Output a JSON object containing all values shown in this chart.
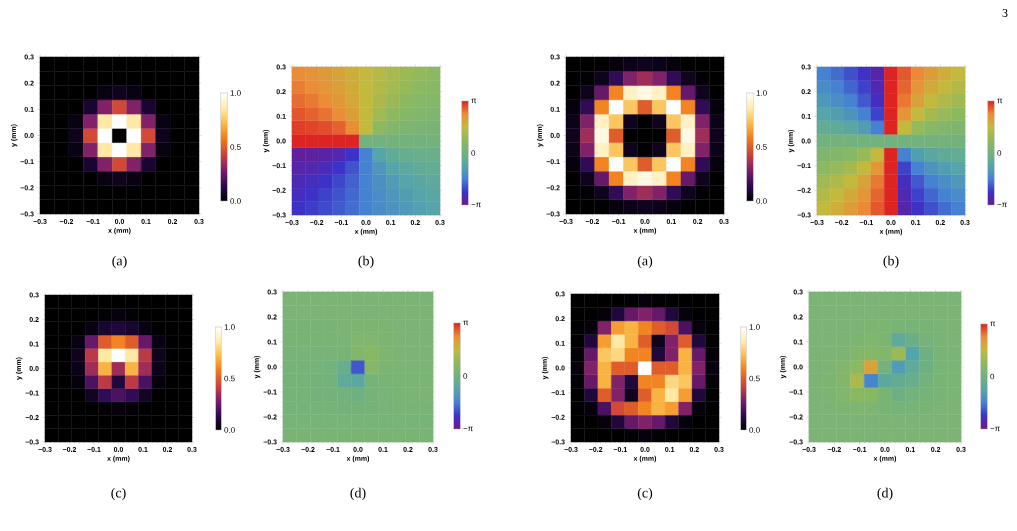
{
  "chart_data": [
    {
      "type": "heatmap",
      "title": "(a)",
      "xlabel": "x (mm)",
      "ylabel": "y (mm)",
      "x": [
        -0.2727,
        -0.2182,
        -0.1636,
        -0.1091,
        -0.0545,
        0,
        0.0545,
        0.1091,
        0.1636,
        0.2182,
        0.2727
      ],
      "y": [
        0.2727,
        0.2182,
        0.1636,
        0.1091,
        0.0545,
        0,
        -0.0545,
        -0.1091,
        -0.1636,
        -0.2182,
        -0.2727
      ],
      "xlim": [
        -0.3,
        0.3
      ],
      "ylim": [
        -0.3,
        0.3
      ],
      "xticks": [
        {
          "value": -0.3,
          "label": "−0.3"
        },
        {
          "value": -0.2,
          "label": "−0.2"
        },
        {
          "value": -0.1,
          "label": "−0.1"
        },
        {
          "value": 0,
          "label": "0.0"
        },
        {
          "value": 0.1,
          "label": "0.1"
        },
        {
          "value": 0.2,
          "label": "0.2"
        },
        {
          "value": 0.3,
          "label": "0.3"
        }
      ],
      "yticks": [
        {
          "value": -0.3,
          "label": "−0.3"
        },
        {
          "value": -0.2,
          "label": "−0.2"
        },
        {
          "value": -0.1,
          "label": "−0.1"
        },
        {
          "value": 0,
          "label": "0.0"
        },
        {
          "value": 0.1,
          "label": "0.1"
        },
        {
          "value": 0.2,
          "label": "0.2"
        },
        {
          "value": 0.3,
          "label": "0.3"
        }
      ],
      "clim": [
        0,
        1
      ],
      "cticks": [
        {
          "value": 0,
          "label": "0.0"
        },
        {
          "value": 0.5,
          "label": "0.5"
        },
        {
          "value": 1,
          "label": "1.0"
        }
      ],
      "cells": [
        [
          0,
          0,
          0,
          0,
          0,
          0,
          0,
          0,
          0,
          0,
          0
        ],
        [
          0,
          0,
          0,
          0,
          0,
          0,
          0,
          0,
          0,
          0,
          0
        ],
        [
          0,
          0,
          0,
          0,
          0.03,
          0.05,
          0.03,
          0,
          0,
          0,
          0
        ],
        [
          0,
          0,
          0,
          0.08,
          0.3,
          0.45,
          0.3,
          0.08,
          0,
          0,
          0
        ],
        [
          0,
          0,
          0.03,
          0.3,
          0.85,
          1.0,
          0.85,
          0.3,
          0.03,
          0,
          0
        ],
        [
          0,
          0,
          0.05,
          0.45,
          1.0,
          0,
          1.0,
          0.45,
          0.05,
          0,
          0
        ],
        [
          0,
          0,
          0.03,
          0.3,
          0.85,
          1.0,
          0.85,
          0.3,
          0.03,
          0,
          0
        ],
        [
          0,
          0,
          0,
          0.08,
          0.3,
          0.45,
          0.3,
          0.08,
          0,
          0,
          0
        ],
        [
          0,
          0,
          0,
          0,
          0.03,
          0.05,
          0.03,
          0,
          0,
          0,
          0
        ],
        [
          0,
          0,
          0,
          0,
          0,
          0,
          0,
          0,
          0,
          0,
          0
        ],
        [
          0,
          0,
          0,
          0,
          0,
          0,
          0,
          0,
          0,
          0,
          0
        ]
      ]
    },
    {
      "type": "heatmap",
      "title": "(b)",
      "xlabel": "x (mm)",
      "ylabel": "y (mm)",
      "x": [
        -0.2727,
        -0.2182,
        -0.1636,
        -0.1091,
        -0.0545,
        0,
        0.0545,
        0.1091,
        0.1636,
        0.2182,
        0.2727
      ],
      "y": [
        0.2727,
        0.2182,
        0.1636,
        0.1091,
        0.0545,
        0,
        -0.0545,
        -0.1091,
        -0.1636,
        -0.2182,
        -0.2727
      ],
      "xlim": [
        -0.3,
        0.3
      ],
      "ylim": [
        -0.3,
        0.3
      ],
      "xticks": [
        {
          "value": -0.3,
          "label": "−0.3"
        },
        {
          "value": -0.2,
          "label": "−0.2"
        },
        {
          "value": -0.1,
          "label": "−0.1"
        },
        {
          "value": 0,
          "label": "0.0"
        },
        {
          "value": 0.1,
          "label": "0.1"
        },
        {
          "value": 0.2,
          "label": "0.2"
        },
        {
          "value": 0.3,
          "label": "0.3"
        }
      ],
      "yticks": [
        {
          "value": -0.3,
          "label": "−0.3"
        },
        {
          "value": -0.2,
          "label": "−0.2"
        },
        {
          "value": -0.1,
          "label": "−0.1"
        },
        {
          "value": 0,
          "label": "0.0"
        },
        {
          "value": 0.1,
          "label": "0.1"
        },
        {
          "value": 0.2,
          "label": "0.2"
        },
        {
          "value": 0.3,
          "label": "0.3"
        }
      ],
      "clim": [
        -3.14159,
        3.14159
      ],
      "cticks": [
        {
          "value": -3.14159,
          "label": "−π"
        },
        {
          "value": 0,
          "label": "0"
        },
        {
          "value": 3.14159,
          "label": "π"
        }
      ],
      "cells": [
        [
          2.36,
          2.25,
          2.11,
          1.95,
          1.77,
          1.57,
          1.37,
          1.19,
          1.03,
          0.9,
          0.79
        ],
        [
          2.47,
          2.36,
          2.21,
          2.03,
          1.82,
          1.57,
          1.33,
          1.11,
          0.93,
          0.79,
          0.67
        ],
        [
          2.6,
          2.5,
          2.36,
          2.16,
          1.89,
          1.57,
          1.25,
          0.98,
          0.79,
          0.64,
          0.54
        ],
        [
          2.76,
          2.68,
          2.55,
          2.36,
          2.03,
          1.57,
          1.11,
          0.79,
          0.59,
          0.46,
          0.38
        ],
        [
          2.94,
          2.9,
          2.82,
          2.68,
          2.36,
          1.57,
          0.79,
          0.46,
          0.32,
          0.24,
          0.2
        ],
        [
          3.14,
          3.14,
          3.14,
          3.14,
          3.14,
          0,
          0,
          0,
          0,
          0,
          0
        ],
        [
          -2.94,
          -2.9,
          -2.82,
          -2.68,
          -2.36,
          -1.57,
          -0.79,
          -0.46,
          -0.32,
          -0.24,
          -0.2
        ],
        [
          -2.76,
          -2.68,
          -2.55,
          -2.36,
          -2.03,
          -1.57,
          -1.11,
          -0.79,
          -0.59,
          -0.46,
          -0.38
        ],
        [
          -2.6,
          -2.5,
          -2.36,
          -2.16,
          -1.89,
          -1.57,
          -1.25,
          -0.98,
          -0.79,
          -0.64,
          -0.54
        ],
        [
          -2.47,
          -2.36,
          -2.21,
          -2.03,
          -1.82,
          -1.57,
          -1.33,
          -1.11,
          -0.93,
          -0.79,
          -0.67
        ],
        [
          -2.36,
          -2.25,
          -2.11,
          -1.95,
          -1.77,
          -1.57,
          -1.37,
          -1.19,
          -1.03,
          -0.9,
          -0.79
        ]
      ]
    },
    {
      "type": "heatmap",
      "title": "(a)",
      "xlabel": "x (mm)",
      "ylabel": "y (mm)",
      "x": [
        -0.2727,
        -0.2182,
        -0.1636,
        -0.1091,
        -0.0545,
        0,
        0.0545,
        0.1091,
        0.1636,
        0.2182,
        0.2727
      ],
      "y": [
        0.2727,
        0.2182,
        0.1636,
        0.1091,
        0.0545,
        0,
        -0.0545,
        -0.1091,
        -0.1636,
        -0.2182,
        -0.2727
      ],
      "xlim": [
        -0.3,
        0.3
      ],
      "ylim": [
        -0.3,
        0.3
      ],
      "xticks": [
        {
          "value": -0.3,
          "label": "−0.3"
        },
        {
          "value": -0.2,
          "label": "−0.2"
        },
        {
          "value": -0.1,
          "label": "−0.1"
        },
        {
          "value": 0,
          "label": "0.0"
        },
        {
          "value": 0.1,
          "label": "0.1"
        },
        {
          "value": 0.2,
          "label": "0.2"
        },
        {
          "value": 0.3,
          "label": "0.3"
        }
      ],
      "yticks": [
        {
          "value": -0.3,
          "label": "−0.3"
        },
        {
          "value": -0.2,
          "label": "−0.2"
        },
        {
          "value": -0.1,
          "label": "−0.1"
        },
        {
          "value": 0,
          "label": "0.0"
        },
        {
          "value": 0.1,
          "label": "0.1"
        },
        {
          "value": 0.2,
          "label": "0.2"
        },
        {
          "value": 0.3,
          "label": "0.3"
        }
      ],
      "clim": [
        0,
        1
      ],
      "cticks": [
        {
          "value": 0,
          "label": "0.0"
        },
        {
          "value": 0.5,
          "label": "0.5"
        },
        {
          "value": 1,
          "label": "1.0"
        }
      ],
      "cells": [
        [
          0,
          0,
          0,
          0.02,
          0.04,
          0.05,
          0.04,
          0.02,
          0,
          0,
          0
        ],
        [
          0,
          0.01,
          0.05,
          0.15,
          0.3,
          0.35,
          0.3,
          0.15,
          0.05,
          0.01,
          0
        ],
        [
          0,
          0.05,
          0.25,
          0.6,
          0.9,
          0.95,
          0.9,
          0.6,
          0.25,
          0.05,
          0
        ],
        [
          0.02,
          0.15,
          0.6,
          1.0,
          0.75,
          0.5,
          0.75,
          1.0,
          0.6,
          0.15,
          0.02
        ],
        [
          0.04,
          0.3,
          0.9,
          0.75,
          0.05,
          0,
          0.05,
          0.75,
          0.9,
          0.3,
          0.04
        ],
        [
          0.05,
          0.35,
          0.95,
          0.5,
          0,
          0,
          0,
          0.5,
          0.95,
          0.35,
          0.05
        ],
        [
          0.04,
          0.3,
          0.9,
          0.75,
          0.05,
          0,
          0.05,
          0.75,
          0.9,
          0.3,
          0.04
        ],
        [
          0.02,
          0.15,
          0.6,
          1.0,
          0.75,
          0.5,
          0.75,
          1.0,
          0.6,
          0.15,
          0.02
        ],
        [
          0,
          0.05,
          0.25,
          0.6,
          0.9,
          0.95,
          0.9,
          0.6,
          0.25,
          0.05,
          0
        ],
        [
          0,
          0.01,
          0.05,
          0.15,
          0.3,
          0.35,
          0.3,
          0.15,
          0.05,
          0.01,
          0
        ],
        [
          0,
          0,
          0,
          0.02,
          0.04,
          0.05,
          0.04,
          0.02,
          0,
          0,
          0
        ]
      ]
    },
    {
      "type": "heatmap",
      "title": "(b)",
      "xlabel": "x (mm)",
      "ylabel": "y (mm)",
      "annotations": [
        "3"
      ],
      "x": [
        -0.2727,
        -0.2182,
        -0.1636,
        -0.1091,
        -0.0545,
        0,
        0.0545,
        0.1091,
        0.1636,
        0.2182,
        0.2727
      ],
      "y": [
        0.2727,
        0.2182,
        0.1636,
        0.1091,
        0.0545,
        0,
        -0.0545,
        -0.1091,
        -0.1636,
        -0.2182,
        -0.2727
      ],
      "xlim": [
        -0.3,
        0.3
      ],
      "ylim": [
        -0.3,
        0.3
      ],
      "xticks": [
        {
          "value": -0.3,
          "label": "−0.3"
        },
        {
          "value": -0.2,
          "label": "−0.2"
        },
        {
          "value": -0.1,
          "label": "−0.1"
        },
        {
          "value": 0,
          "label": "0.0"
        },
        {
          "value": 0.1,
          "label": "0.1"
        },
        {
          "value": 0.2,
          "label": "0.2"
        },
        {
          "value": 0.3,
          "label": "0.3"
        }
      ],
      "yticks": [
        {
          "value": -0.3,
          "label": "−0.3"
        },
        {
          "value": -0.2,
          "label": "−0.2"
        },
        {
          "value": -0.1,
          "label": "−0.1"
        },
        {
          "value": 0,
          "label": "0.0"
        },
        {
          "value": 0.1,
          "label": "0.1"
        },
        {
          "value": 0.2,
          "label": "0.2"
        },
        {
          "value": 0.3,
          "label": "0.3"
        }
      ],
      "clim": [
        -3.14159,
        3.14159
      ],
      "cticks": [
        {
          "value": -3.14159,
          "label": "−π"
        },
        {
          "value": 0,
          "label": "0"
        },
        {
          "value": 3.14159,
          "label": "π"
        }
      ],
      "cells": [
        [
          -1.57,
          -1.79,
          -2.06,
          -2.38,
          -2.75,
          3.14,
          2.75,
          2.38,
          2.06,
          1.79,
          1.57
        ],
        [
          -1.35,
          -1.57,
          -1.85,
          -2.21,
          -2.65,
          3.14,
          2.65,
          2.21,
          1.85,
          1.57,
          1.35
        ],
        [
          -1.08,
          -1.29,
          -1.57,
          -1.97,
          -2.5,
          3.14,
          2.5,
          1.97,
          1.57,
          1.29,
          1.08
        ],
        [
          -0.76,
          -0.93,
          -1.18,
          -1.57,
          -2.21,
          3.14,
          2.21,
          1.57,
          1.18,
          0.93,
          0.76
        ],
        [
          -0.39,
          -0.49,
          -0.64,
          -0.93,
          -1.57,
          3.14,
          1.57,
          0.93,
          0.64,
          0.49,
          0.39
        ],
        [
          0,
          0,
          0,
          0,
          0,
          0,
          0,
          0,
          0,
          0,
          0
        ],
        [
          0.39,
          0.49,
          0.64,
          0.93,
          1.57,
          3.14,
          -1.57,
          -0.93,
          -0.64,
          -0.49,
          -0.39
        ],
        [
          0.76,
          0.93,
          1.18,
          1.57,
          2.21,
          3.14,
          -2.21,
          -1.57,
          -1.18,
          -0.93,
          -0.76
        ],
        [
          1.08,
          1.29,
          1.57,
          1.97,
          2.5,
          3.14,
          -2.5,
          -1.97,
          -1.57,
          -1.29,
          -1.08
        ],
        [
          1.35,
          1.57,
          1.85,
          2.21,
          2.65,
          3.14,
          -2.65,
          -2.21,
          -1.85,
          -1.57,
          -1.35
        ],
        [
          1.57,
          1.79,
          2.06,
          2.38,
          2.75,
          3.14,
          -2.75,
          -2.38,
          -2.06,
          -1.79,
          -1.57
        ]
      ]
    },
    {
      "type": "heatmap",
      "title": "(c)",
      "xlabel": "x (mm)",
      "ylabel": "y (mm)",
      "x": [
        -0.2727,
        -0.2182,
        -0.1636,
        -0.1091,
        -0.0545,
        0,
        0.0545,
        0.1091,
        0.1636,
        0.2182,
        0.2727
      ],
      "y": [
        0.2727,
        0.2182,
        0.1636,
        0.1091,
        0.0545,
        0,
        -0.0545,
        -0.1091,
        -0.1636,
        -0.2182,
        -0.2727
      ],
      "xlim": [
        -0.3,
        0.3
      ],
      "ylim": [
        -0.3,
        0.3
      ],
      "xticks": [
        {
          "value": -0.3,
          "label": "−0.3"
        },
        {
          "value": -0.2,
          "label": "−0.2"
        },
        {
          "value": -0.1,
          "label": "−0.1"
        },
        {
          "value": 0,
          "label": "0.0"
        },
        {
          "value": 0.1,
          "label": "0.1"
        },
        {
          "value": 0.2,
          "label": "0.2"
        },
        {
          "value": 0.3,
          "label": "0.3"
        }
      ],
      "yticks": [
        {
          "value": -0.3,
          "label": "−0.3"
        },
        {
          "value": -0.2,
          "label": "−0.2"
        },
        {
          "value": -0.1,
          "label": "−0.1"
        },
        {
          "value": 0,
          "label": "0.0"
        },
        {
          "value": 0.1,
          "label": "0.1"
        },
        {
          "value": 0.2,
          "label": "0.2"
        },
        {
          "value": 0.3,
          "label": "0.3"
        }
      ],
      "clim": [
        0,
        1
      ],
      "cticks": [
        {
          "value": 0,
          "label": "0.0"
        },
        {
          "value": 0.5,
          "label": "0.5"
        },
        {
          "value": 1,
          "label": "1.0"
        }
      ],
      "cells": [
        [
          0,
          0,
          0,
          0,
          0,
          0,
          0,
          0,
          0,
          0,
          0
        ],
        [
          0,
          0,
          0,
          0,
          0.01,
          0.02,
          0.01,
          0,
          0,
          0,
          0
        ],
        [
          0,
          0,
          0,
          0.03,
          0.08,
          0.1,
          0.08,
          0.03,
          0,
          0,
          0
        ],
        [
          0,
          0,
          0.03,
          0.25,
          0.5,
          0.6,
          0.5,
          0.25,
          0.03,
          0,
          0
        ],
        [
          0,
          0,
          0.05,
          0.4,
          0.85,
          1.0,
          0.85,
          0.4,
          0.05,
          0,
          0
        ],
        [
          0,
          0,
          0.04,
          0.35,
          0.7,
          0.35,
          0.7,
          0.35,
          0.04,
          0,
          0
        ],
        [
          0,
          0,
          0.02,
          0.2,
          0.4,
          0.1,
          0.4,
          0.2,
          0.02,
          0,
          0
        ],
        [
          0,
          0,
          0,
          0.06,
          0.15,
          0.2,
          0.15,
          0.06,
          0,
          0,
          0
        ],
        [
          0,
          0,
          0,
          0,
          0.01,
          0.02,
          0.01,
          0,
          0,
          0,
          0
        ],
        [
          0,
          0,
          0,
          0,
          0,
          0,
          0,
          0,
          0,
          0,
          0
        ],
        [
          0,
          0,
          0,
          0,
          0,
          0,
          0,
          0,
          0,
          0,
          0
        ]
      ]
    },
    {
      "type": "heatmap",
      "title": "(d)",
      "xlabel": "x (mm)",
      "ylabel": "y (mm)",
      "x": [
        -0.2727,
        -0.2182,
        -0.1636,
        -0.1091,
        -0.0545,
        0,
        0.0545,
        0.1091,
        0.1636,
        0.2182,
        0.2727
      ],
      "y": [
        0.2727,
        0.2182,
        0.1636,
        0.1091,
        0.0545,
        0,
        -0.0545,
        -0.1091,
        -0.1636,
        -0.2182,
        -0.2727
      ],
      "xlim": [
        -0.3,
        0.3
      ],
      "ylim": [
        -0.3,
        0.3
      ],
      "xticks": [
        {
          "value": -0.3,
          "label": "−0.3"
        },
        {
          "value": -0.2,
          "label": "−0.2"
        },
        {
          "value": -0.1,
          "label": "−0.1"
        },
        {
          "value": 0,
          "label": "0.0"
        },
        {
          "value": 0.1,
          "label": "0.1"
        },
        {
          "value": 0.2,
          "label": "0.2"
        },
        {
          "value": 0.3,
          "label": "0.3"
        }
      ],
      "yticks": [
        {
          "value": -0.3,
          "label": "−0.3"
        },
        {
          "value": -0.2,
          "label": "−0.2"
        },
        {
          "value": -0.1,
          "label": "−0.1"
        },
        {
          "value": 0,
          "label": "0.0"
        },
        {
          "value": 0.1,
          "label": "0.1"
        },
        {
          "value": 0.2,
          "label": "0.2"
        },
        {
          "value": 0.3,
          "label": "0.3"
        }
      ],
      "clim": [
        -3.14159,
        3.14159
      ],
      "cticks": [
        {
          "value": -3.14159,
          "label": "−π"
        },
        {
          "value": 0,
          "label": "0"
        },
        {
          "value": 3.14159,
          "label": "π"
        }
      ],
      "cells": [
        [
          0.25,
          0.25,
          0.25,
          0.25,
          0.25,
          0.25,
          0.25,
          0.25,
          0.25,
          0.25,
          0.25
        ],
        [
          0.25,
          0.25,
          0.25,
          0.25,
          0.25,
          0.25,
          0.25,
          0.25,
          0.25,
          0.25,
          0.25
        ],
        [
          0.2,
          0.2,
          0.2,
          0.2,
          0.25,
          0.3,
          0.3,
          0.3,
          0.25,
          0.25,
          0.25
        ],
        [
          0.2,
          0.2,
          0.2,
          0.2,
          0.25,
          0.4,
          0.4,
          0.3,
          0.25,
          0.25,
          0.25
        ],
        [
          0.15,
          0.15,
          0.15,
          0.15,
          0.2,
          0.5,
          0.7,
          0.35,
          0.25,
          0.25,
          0.25
        ],
        [
          0.1,
          0.1,
          0.1,
          0,
          -0.3,
          -2.0,
          0.6,
          0.3,
          0.25,
          0.25,
          0.25
        ],
        [
          0.1,
          0.1,
          0.05,
          0,
          -0.5,
          -0.6,
          0.1,
          0.2,
          0.2,
          0.25,
          0.25
        ],
        [
          0.1,
          0.1,
          0.05,
          0.05,
          0,
          -0.1,
          0.1,
          0.15,
          0.2,
          0.25,
          0.25
        ],
        [
          0.1,
          0.1,
          0.1,
          0.1,
          0.05,
          0.05,
          0.1,
          0.15,
          0.2,
          0.2,
          0.2
        ],
        [
          0.15,
          0.15,
          0.15,
          0.15,
          0.15,
          0.15,
          0.15,
          0.15,
          0.15,
          0.15,
          0.15
        ],
        [
          0.2,
          0.2,
          0.2,
          0.2,
          0.2,
          0.2,
          0.2,
          0.2,
          0.2,
          0.2,
          0.2
        ]
      ]
    },
    {
      "type": "heatmap",
      "title": "(c)",
      "xlabel": "x (mm)",
      "ylabel": "y (mm)",
      "x": [
        -0.2727,
        -0.2182,
        -0.1636,
        -0.1091,
        -0.0545,
        0,
        0.0545,
        0.1091,
        0.1636,
        0.2182,
        0.2727
      ],
      "y": [
        0.2727,
        0.2182,
        0.1636,
        0.1091,
        0.0545,
        0,
        -0.0545,
        -0.1091,
        -0.1636,
        -0.2182,
        -0.2727
      ],
      "xlim": [
        -0.3,
        0.3
      ],
      "ylim": [
        -0.3,
        0.3
      ],
      "xticks": [
        {
          "value": -0.3,
          "label": "−0.3"
        },
        {
          "value": -0.2,
          "label": "−0.2"
        },
        {
          "value": -0.1,
          "label": "−0.1"
        },
        {
          "value": 0,
          "label": "0.0"
        },
        {
          "value": 0.1,
          "label": "0.1"
        },
        {
          "value": 0.2,
          "label": "0.2"
        },
        {
          "value": 0.3,
          "label": "0.3"
        }
      ],
      "yticks": [
        {
          "value": -0.3,
          "label": "−0.3"
        },
        {
          "value": -0.2,
          "label": "−0.2"
        },
        {
          "value": -0.1,
          "label": "−0.1"
        },
        {
          "value": 0,
          "label": "0.0"
        },
        {
          "value": 0.1,
          "label": "0.1"
        },
        {
          "value": 0.2,
          "label": "0.2"
        },
        {
          "value": 0.3,
          "label": "0.3"
        }
      ],
      "clim": [
        0,
        1
      ],
      "cticks": [
        {
          "value": 0,
          "label": "0.0"
        },
        {
          "value": 0.5,
          "label": "0.5"
        },
        {
          "value": 1,
          "label": "1.0"
        }
      ],
      "cells": [
        [
          0,
          0,
          0,
          0,
          0.01,
          0.02,
          0.01,
          0,
          0,
          0,
          0
        ],
        [
          0,
          0,
          0.02,
          0.1,
          0.25,
          0.3,
          0.25,
          0.1,
          0.02,
          0,
          0
        ],
        [
          0,
          0.02,
          0.3,
          0.65,
          0.7,
          0.6,
          0.5,
          0.45,
          0.2,
          0.02,
          0
        ],
        [
          0,
          0.1,
          0.65,
          0.85,
          0.7,
          0.5,
          0.05,
          0.3,
          0.5,
          0.1,
          0
        ],
        [
          0.01,
          0.25,
          0.75,
          0.8,
          0.6,
          0.6,
          0.1,
          0.3,
          0.7,
          0.25,
          0.01
        ],
        [
          0.02,
          0.3,
          0.7,
          0.5,
          0.5,
          1.0,
          0.5,
          0.5,
          0.7,
          0.3,
          0.02
        ],
        [
          0.01,
          0.25,
          0.7,
          0.3,
          0.1,
          0.6,
          0.6,
          0.8,
          0.75,
          0.25,
          0.01
        ],
        [
          0,
          0.1,
          0.5,
          0.3,
          0.05,
          0.5,
          0.7,
          0.85,
          0.65,
          0.1,
          0
        ],
        [
          0,
          0.02,
          0.2,
          0.45,
          0.5,
          0.6,
          0.7,
          0.65,
          0.3,
          0.02,
          0
        ],
        [
          0,
          0,
          0.02,
          0.1,
          0.25,
          0.3,
          0.25,
          0.1,
          0.02,
          0,
          0
        ],
        [
          0,
          0,
          0,
          0,
          0.01,
          0.02,
          0.01,
          0,
          0,
          0,
          0
        ]
      ]
    },
    {
      "type": "heatmap",
      "title": "(d)",
      "xlabel": "x (mm)",
      "ylabel": "y (mm)",
      "x": [
        -0.2727,
        -0.2182,
        -0.1636,
        -0.1091,
        -0.0545,
        0,
        0.0545,
        0.1091,
        0.1636,
        0.2182,
        0.2727
      ],
      "y": [
        0.2727,
        0.2182,
        0.1636,
        0.1091,
        0.0545,
        0,
        -0.0545,
        -0.1091,
        -0.1636,
        -0.2182,
        -0.2727
      ],
      "xlim": [
        -0.3,
        0.3
      ],
      "ylim": [
        -0.3,
        0.3
      ],
      "xticks": [
        {
          "value": -0.3,
          "label": "−0.3"
        },
        {
          "value": -0.2,
          "label": "−0.2"
        },
        {
          "value": -0.1,
          "label": "−0.1"
        },
        {
          "value": 0,
          "label": "0.0"
        },
        {
          "value": 0.1,
          "label": "0.1"
        },
        {
          "value": 0.2,
          "label": "0.2"
        },
        {
          "value": 0.3,
          "label": "0.3"
        }
      ],
      "yticks": [
        {
          "value": -0.3,
          "label": "−0.3"
        },
        {
          "value": -0.2,
          "label": "−0.2"
        },
        {
          "value": -0.1,
          "label": "−0.1"
        },
        {
          "value": 0,
          "label": "0.0"
        },
        {
          "value": 0.1,
          "label": "0.1"
        },
        {
          "value": 0.2,
          "label": "0.2"
        },
        {
          "value": 0.3,
          "label": "0.3"
        }
      ],
      "clim": [
        -3.14159,
        3.14159
      ],
      "cticks": [
        {
          "value": -3.14159,
          "label": "−π"
        },
        {
          "value": 0,
          "label": "0"
        },
        {
          "value": 3.14159,
          "label": "π"
        }
      ],
      "cells": [
        [
          0.25,
          0.25,
          0.25,
          0.25,
          0.25,
          0.25,
          0.25,
          0.25,
          0.25,
          0.25,
          0.25
        ],
        [
          0.25,
          0.25,
          0.25,
          0.25,
          0.25,
          0.25,
          0.25,
          0.25,
          0.25,
          0.25,
          0.25
        ],
        [
          0.25,
          0.25,
          0.25,
          0.25,
          0.3,
          0.3,
          0.2,
          0.15,
          0.2,
          0.25,
          0.25
        ],
        [
          0.25,
          0.25,
          0.25,
          0.3,
          0.4,
          0.3,
          -0.5,
          -0.2,
          0.1,
          0.2,
          0.25
        ],
        [
          0.25,
          0.25,
          0.3,
          0.5,
          0.6,
          0.5,
          1.0,
          -0.8,
          -0.1,
          0.15,
          0.25
        ],
        [
          0.25,
          0.3,
          0.4,
          0.8,
          2.0,
          0,
          -1.0,
          -0.5,
          -0.1,
          0.15,
          0.25
        ],
        [
          0.25,
          0.3,
          0.5,
          1.2,
          -1.5,
          -0.6,
          -0.4,
          -0.3,
          0,
          0.2,
          0.25
        ],
        [
          0.25,
          0.3,
          0.4,
          0.7,
          0.7,
          0.2,
          -0.1,
          0,
          0.1,
          0.2,
          0.25
        ],
        [
          0.25,
          0.25,
          0.3,
          0.35,
          0.35,
          0.2,
          0.1,
          0.15,
          0.2,
          0.25,
          0.25
        ],
        [
          0.25,
          0.25,
          0.25,
          0.25,
          0.25,
          0.25,
          0.25,
          0.25,
          0.25,
          0.25,
          0.25
        ],
        [
          0.25,
          0.25,
          0.25,
          0.25,
          0.25,
          0.25,
          0.25,
          0.25,
          0.25,
          0.25,
          0.25
        ]
      ]
    }
  ]
}
